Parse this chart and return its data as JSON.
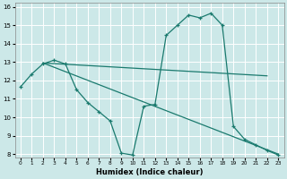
{
  "xlabel": "Humidex (Indice chaleur)",
  "bg_color": "#cce8e8",
  "grid_color": "#ffffff",
  "line_color": "#1a7a6e",
  "xlim": [
    -0.5,
    23.5
  ],
  "ylim": [
    7.8,
    16.2
  ],
  "xticks": [
    0,
    1,
    2,
    3,
    4,
    5,
    6,
    7,
    8,
    9,
    10,
    11,
    12,
    13,
    14,
    15,
    16,
    17,
    18,
    19,
    20,
    21,
    22,
    23
  ],
  "yticks": [
    8,
    9,
    10,
    11,
    12,
    13,
    14,
    15,
    16
  ],
  "line1_x": [
    0,
    1,
    2,
    3,
    4,
    5,
    6,
    7,
    8,
    9,
    10,
    11,
    12,
    13,
    14,
    15,
    16,
    17,
    18,
    19,
    20,
    21,
    22,
    23
  ],
  "line1_y": [
    11.65,
    12.35,
    12.9,
    13.1,
    12.9,
    11.5,
    10.8,
    10.3,
    9.8,
    8.05,
    7.95,
    10.6,
    10.7,
    14.45,
    15.0,
    15.55,
    15.4,
    15.65,
    15.0,
    9.5,
    8.8,
    8.5,
    8.2,
    7.95
  ],
  "line2_x": [
    2,
    22
  ],
  "line2_y": [
    12.95,
    12.25
  ],
  "line3_x": [
    2,
    23
  ],
  "line3_y": [
    12.95,
    8.0
  ]
}
